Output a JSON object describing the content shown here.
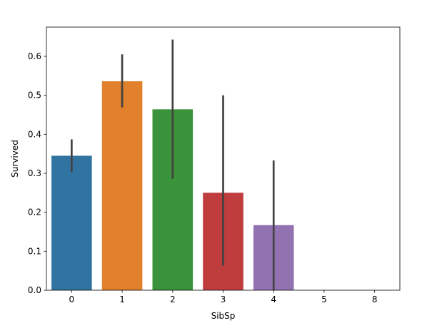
{
  "chart_data": {
    "type": "bar",
    "xlabel": "SibSp",
    "ylabel": "Survived",
    "categories": [
      "0",
      "1",
      "2",
      "3",
      "4",
      "5",
      "8"
    ],
    "values": [
      0.345,
      0.536,
      0.464,
      0.25,
      0.167,
      0.0,
      0.0
    ],
    "error_bars": [
      [
        0.303,
        0.387
      ],
      [
        0.469,
        0.605
      ],
      [
        0.286,
        0.643
      ],
      [
        0.063,
        0.5
      ],
      [
        0.0,
        0.333
      ],
      null,
      null
    ],
    "colors": [
      "#3274a1",
      "#e1812c",
      "#3a923a",
      "#c03d3e",
      "#9372b2",
      "#845b53",
      "#d684bd"
    ],
    "error_bar_color": "#424242",
    "ylim": [
      0,
      0.675
    ],
    "yticks": [
      0.0,
      0.1,
      0.2,
      0.3,
      0.4,
      0.5,
      0.6
    ],
    "ytick_labels": [
      "0.0",
      "0.1",
      "0.2",
      "0.3",
      "0.4",
      "0.5",
      "0.6"
    ],
    "grid": false,
    "legend": false
  }
}
